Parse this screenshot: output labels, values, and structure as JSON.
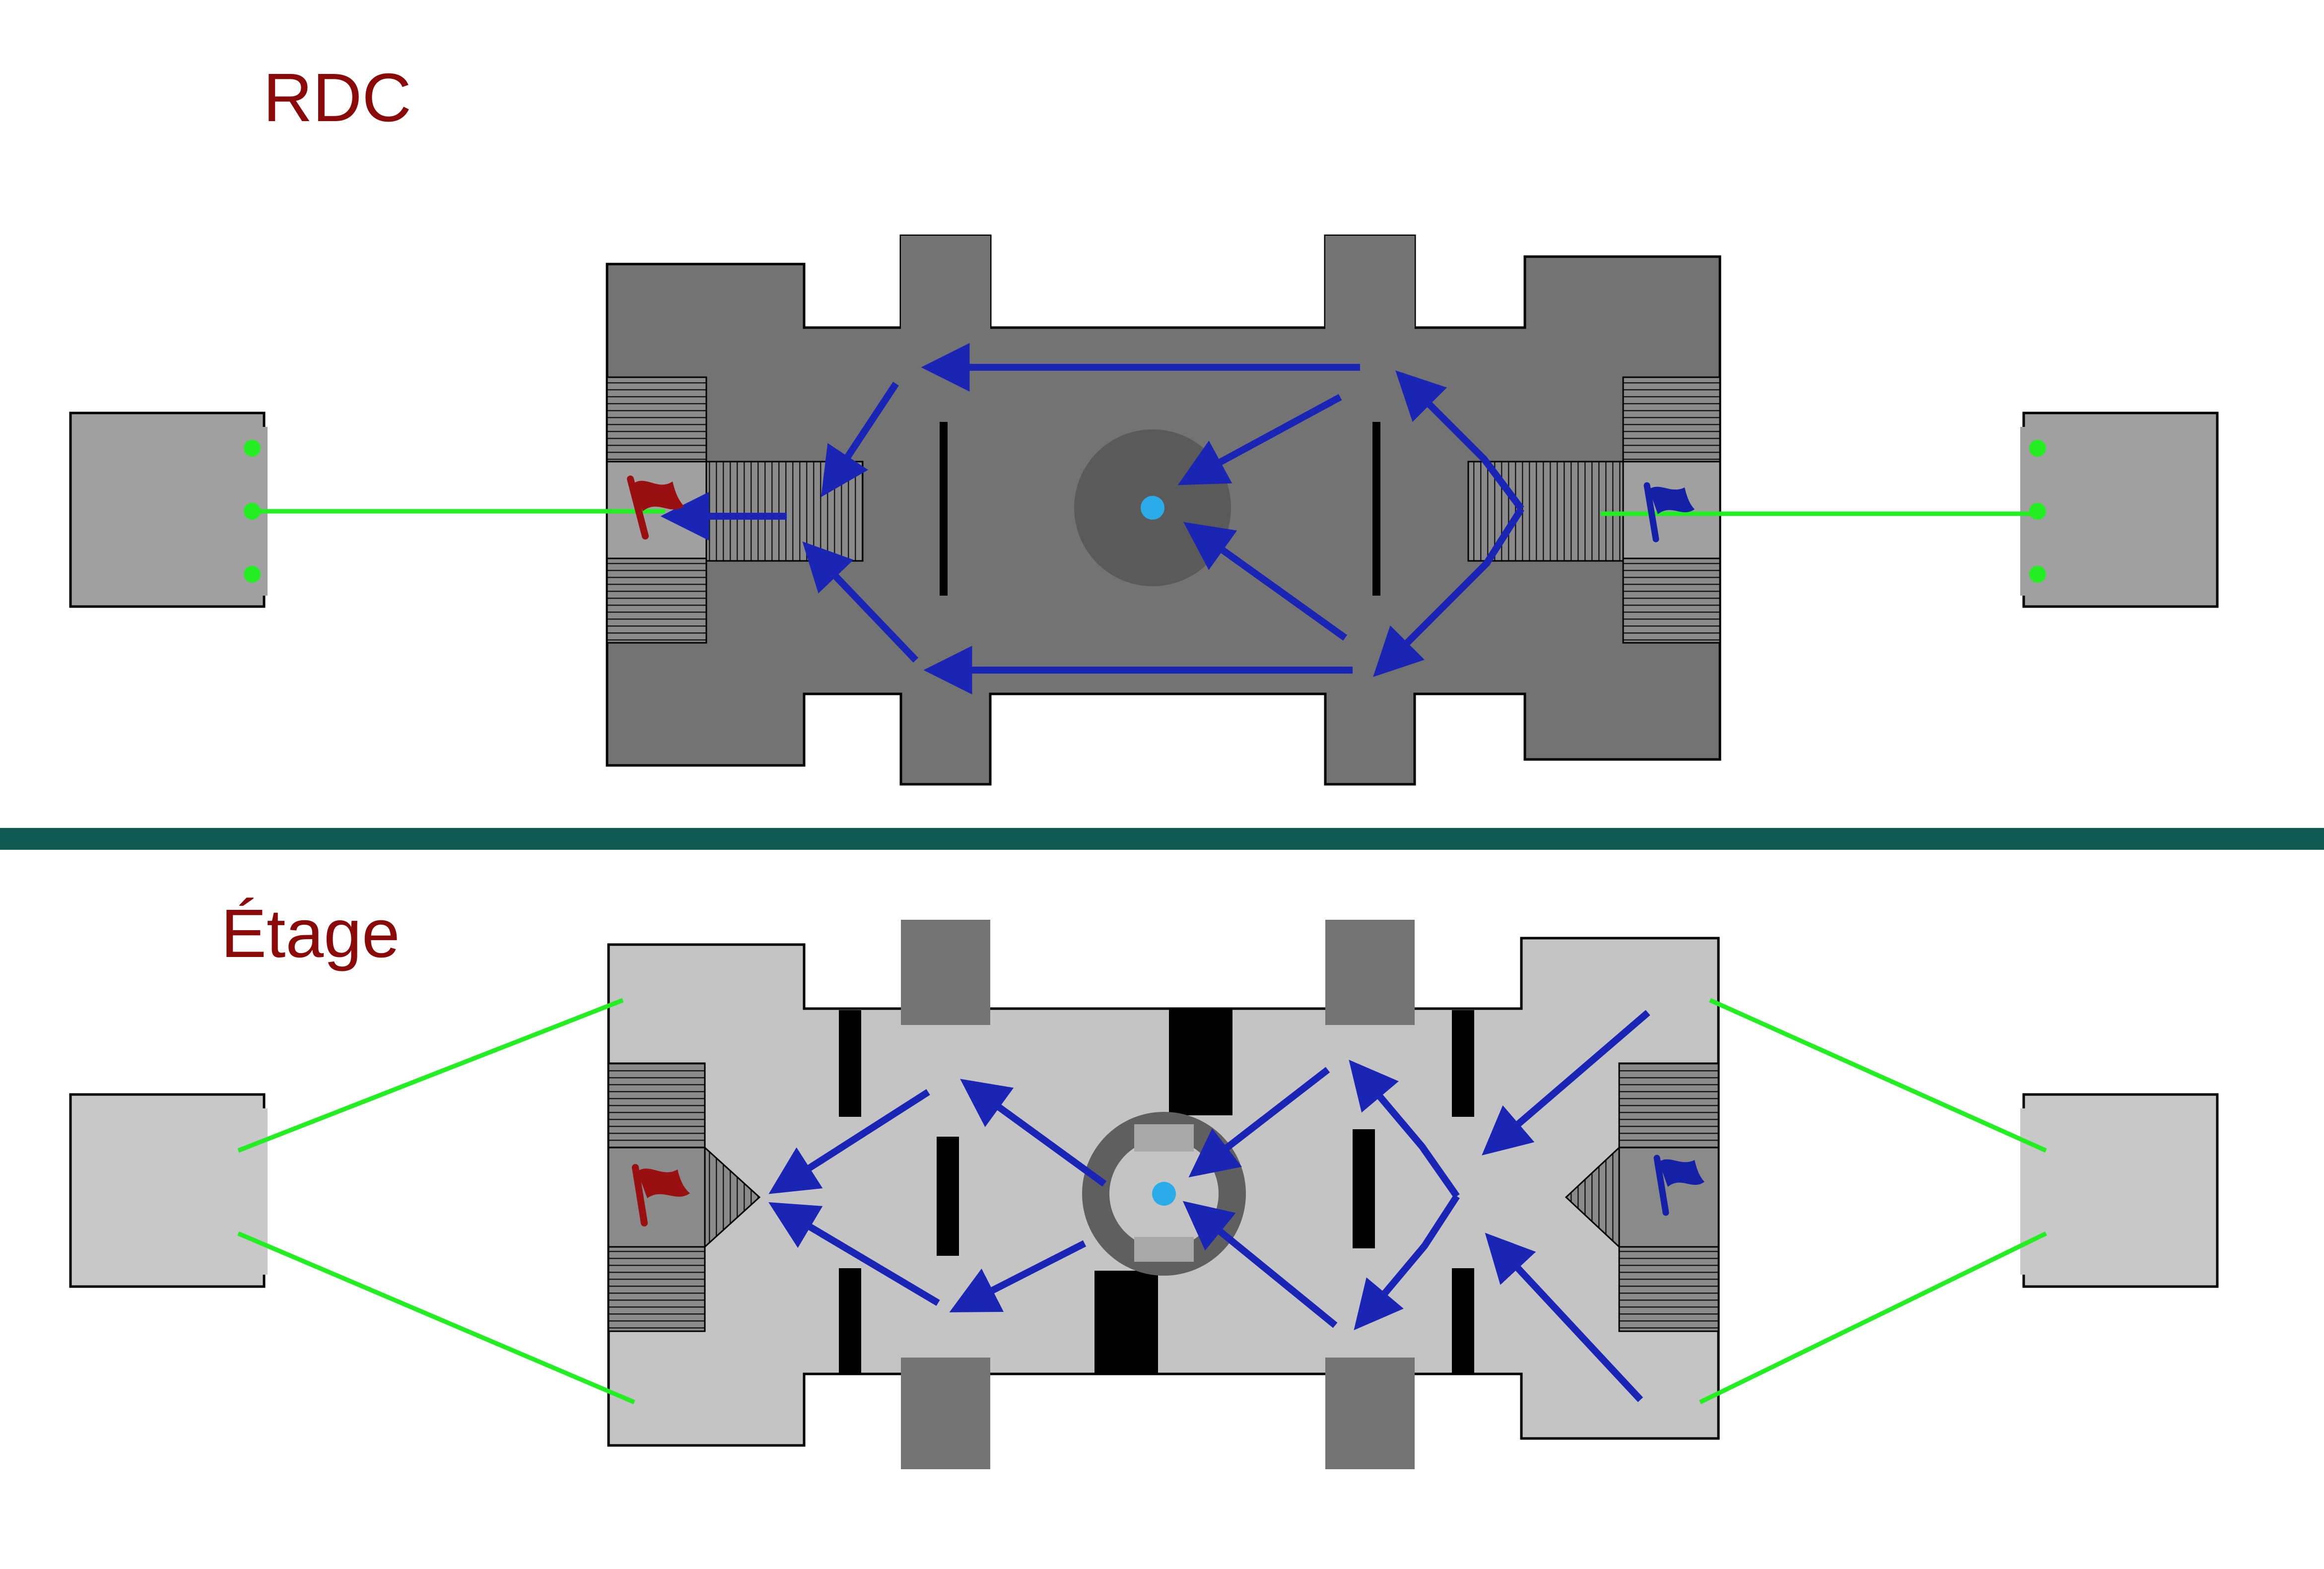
{
  "floors": {
    "ground": {
      "title": "RDC"
    },
    "upper": {
      "title": "Étage"
    }
  },
  "map": {
    "layout_type": "floor-plan-map",
    "floor_count": 2,
    "markers": [
      {
        "name": "red-team-flag",
        "icon": "flag-icon",
        "color": "#9a1010"
      },
      {
        "name": "blue-team-flag",
        "icon": "flag-icon",
        "color": "#1520a8"
      },
      {
        "name": "center-point",
        "icon": "dot-icon",
        "color": "#2aace8"
      }
    ],
    "route_types": [
      {
        "name": "movement-arrows",
        "color": "#1a25b5"
      },
      {
        "name": "sight-lines",
        "color": "#22ee22"
      }
    ]
  },
  "colors": {
    "title": "#8a0a0a",
    "separator": "#0f5a55",
    "ground_floor": "#737373",
    "upper_floor": "#c4c4c4",
    "stairs": "#8a8a8a",
    "spawn_ground": "#a0a0a0",
    "spawn_upper": "#c8c8c8",
    "arrow": "#1a25b5",
    "sight_line": "#22ee22",
    "center_dot": "#2aace8",
    "red_flag": "#9a1010",
    "blue_flag": "#1520a8",
    "wall": "#000000"
  }
}
